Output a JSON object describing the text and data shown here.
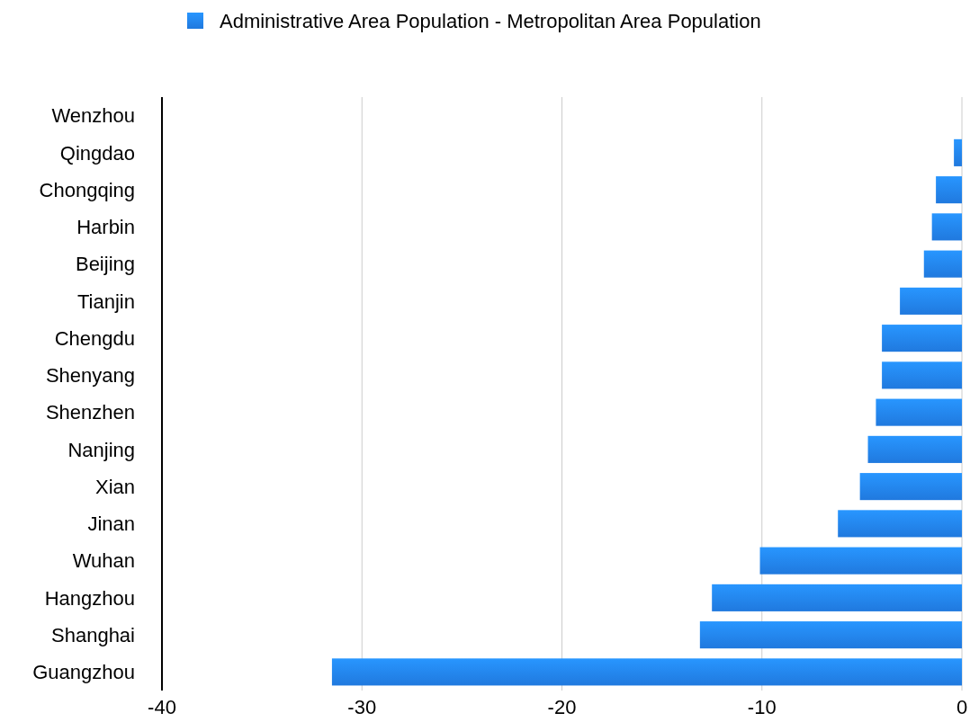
{
  "chart_data": {
    "type": "bar",
    "orientation": "horizontal",
    "categories": [
      "Wenzhou",
      "Qingdao",
      "Chongqing",
      "Harbin",
      "Beijing",
      "Tianjin",
      "Chengdu",
      "Shenyang",
      "Shenzhen",
      "Nanjing",
      "Xian",
      "Jinan",
      "Wuhan",
      "Hangzhou",
      "Shanghai",
      "Guangzhou"
    ],
    "series": [
      {
        "name": "Administrative Area Population - Metropolitan Area Population",
        "color": "#2079de",
        "values": [
          0,
          -0.4,
          -1.3,
          -1.5,
          -1.9,
          -3.1,
          -4.0,
          -4.0,
          -4.3,
          -4.7,
          -5.1,
          -6.2,
          -10.1,
          -12.5,
          -13.1,
          -31.5
        ]
      }
    ],
    "xlim": [
      -40,
      0
    ],
    "xticks": [
      -40,
      -30,
      -20,
      -10,
      0
    ],
    "grid": "x",
    "legend": "top"
  }
}
